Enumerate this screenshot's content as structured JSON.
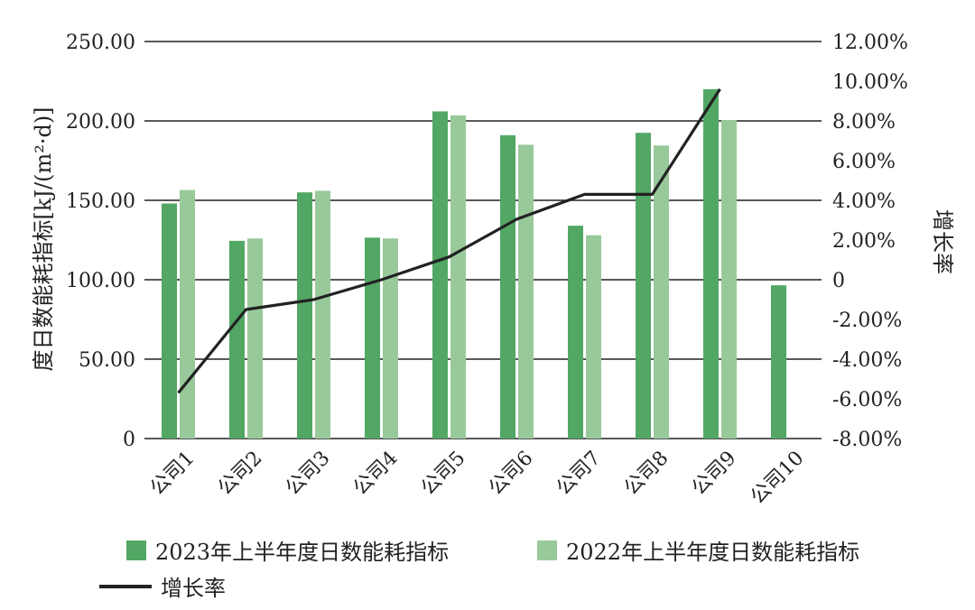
{
  "chart_data": {
    "type": "bar",
    "categories": [
      "公司1",
      "公司2",
      "公司3",
      "公司4",
      "公司5",
      "公司6",
      "公司7",
      "公司8",
      "公司9",
      "公司10"
    ],
    "series": [
      {
        "name": "2023年上半年度日数能耗指标",
        "type": "bar",
        "axis": "left",
        "color": "#52a764",
        "values": [
          148,
          124.5,
          155,
          126.5,
          206,
          191,
          134,
          192.5,
          220,
          96.5
        ]
      },
      {
        "name": "2022年上半年度日数能耗指标",
        "type": "bar",
        "axis": "left",
        "color": "#98c99a",
        "values": [
          156.5,
          126,
          156,
          126,
          203.5,
          185,
          128,
          184.5,
          200.5,
          null
        ]
      },
      {
        "name": "增长率",
        "type": "line",
        "axis": "right",
        "color": "#222222",
        "values": [
          -5.7,
          -1.5,
          -1.0,
          0.0,
          1.15,
          3.05,
          4.3,
          4.3,
          9.6,
          null
        ]
      }
    ],
    "ylabel": "度日数能耗指标[kJ/(m²·d)]",
    "y2label": "增长率",
    "ylim": [
      0,
      250
    ],
    "y2lim": [
      -8,
      12
    ],
    "yticks": [
      "0",
      "50.00",
      "100.00",
      "150.00",
      "200.00",
      "250.00"
    ],
    "y2ticks": [
      "-8.00%",
      "-6.00%",
      "-4.00%",
      "-2.00%",
      "0",
      "2.00%",
      "4.00%",
      "6.00%",
      "8.00%",
      "10.00%",
      "12.00%"
    ],
    "grid": "horizontal",
    "legend_position": "bottom"
  },
  "legend": {
    "item_2023": "2023年上半年度日数能耗指标",
    "item_2022": "2022年上半年度日数能耗指标",
    "item_rate": "增长率"
  },
  "colors": {
    "bar2023": "#52a764",
    "bar2022": "#98c99a",
    "line": "#222222",
    "grid": "#222222"
  }
}
